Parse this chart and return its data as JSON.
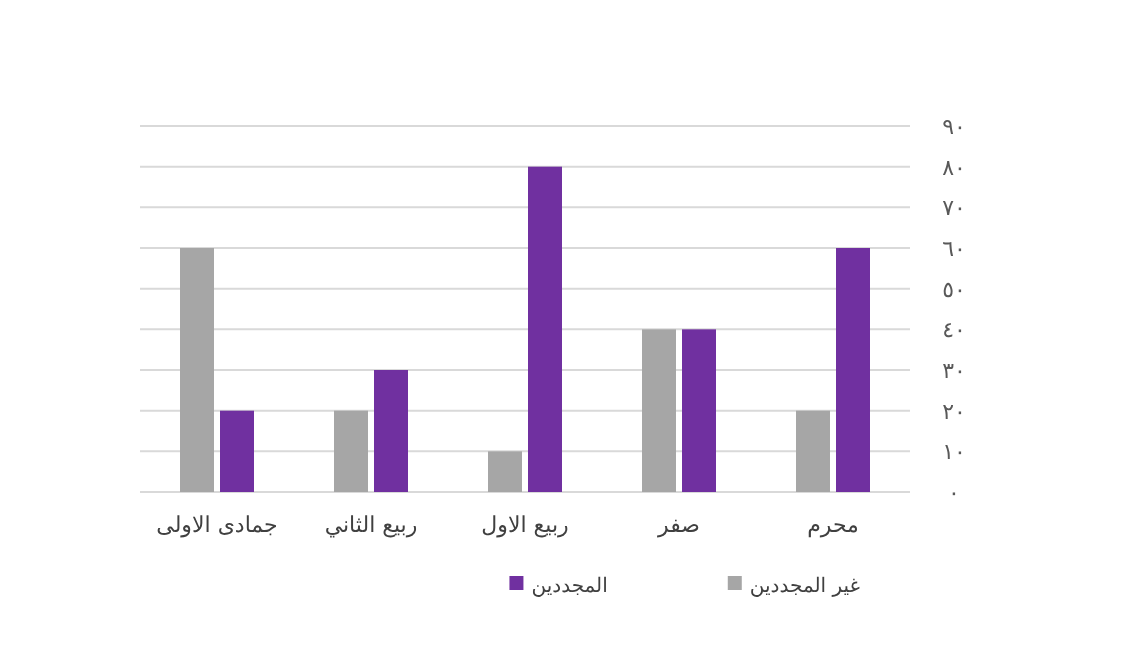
{
  "chart_data": {
    "type": "bar",
    "categories": [
      "جمادى الاولى",
      "ربيع الثاني",
      "ربيع الاول",
      "صفر",
      "محرم"
    ],
    "series": [
      {
        "name": "غير المجددين",
        "color": "#a6a6a6",
        "values": [
          60,
          20,
          10,
          40,
          20
        ]
      },
      {
        "name": "المجددين",
        "color": "#7030a0",
        "values": [
          20,
          30,
          80,
          40,
          60
        ]
      }
    ],
    "ylim": [
      0,
      90
    ],
    "yticks": [
      {
        "value": 0,
        "label": "٠"
      },
      {
        "value": 10,
        "label": "١٠"
      },
      {
        "value": 20,
        "label": "٢٠"
      },
      {
        "value": 30,
        "label": "٣٠"
      },
      {
        "value": 40,
        "label": "٤٠"
      },
      {
        "value": 50,
        "label": "٥٠"
      },
      {
        "value": 60,
        "label": "٦٠"
      },
      {
        "value": 70,
        "label": "٧٠"
      },
      {
        "value": 80,
        "label": "٨٠"
      },
      {
        "value": 90,
        "label": "٩٠"
      }
    ],
    "grid": "y",
    "legend": "bottom"
  }
}
